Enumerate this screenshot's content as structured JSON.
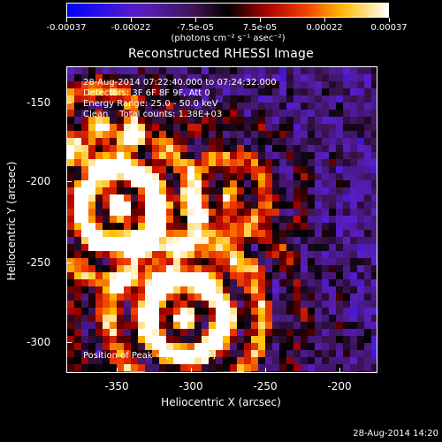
{
  "colorbar": {
    "labels": [
      "-0.00037",
      "-0.00022",
      "-7.5e-05",
      "7.5e-05",
      "0.00022",
      "0.00037"
    ],
    "units": "(photons cm⁻² s⁻¹ asec⁻²)"
  },
  "title": "Reconstructed RHESSI Image",
  "info": {
    "line1": "28-Aug-2014 07:22:40.000 to 07:24:32.000",
    "line2": "Detectors: 3F 6F 8F 9F, Att 0",
    "line3": "Energy Range: 25.0 - 50.0 keV",
    "line4": "Clean    Total counts: 1.38E+03"
  },
  "peak": "Position of Peak = [-314,-297]",
  "axes": {
    "xlabel": "Heliocentric X (arcsec)",
    "ylabel": "Heliocentric Y (arcsec)",
    "xticks": [
      "-350",
      "-300",
      "-250",
      "-200"
    ],
    "yticks": [
      "-150",
      "-200",
      "-250",
      "-300"
    ]
  },
  "timestamp": "28-Aug-2014 14:20"
}
